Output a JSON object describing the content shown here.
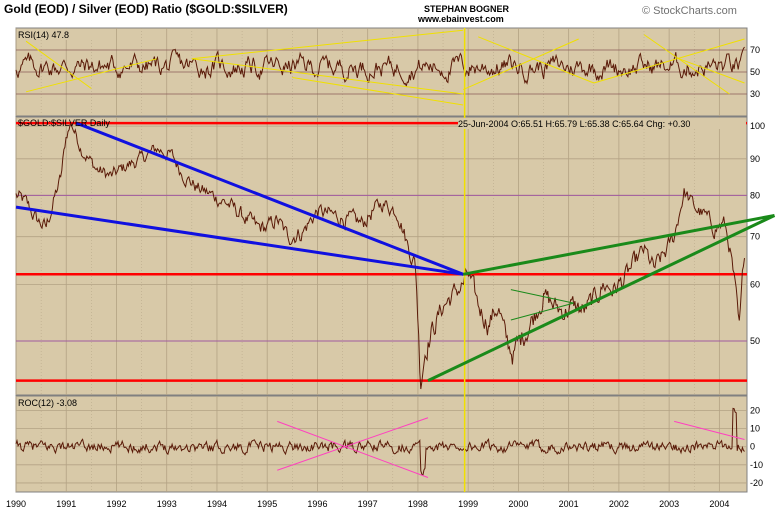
{
  "header": {
    "title": "Gold (EOD) / Silver (EOD) Ratio ($GOLD:$SILVER)",
    "author": "STEPHAN BOGNER",
    "website": "www.ebainvest.com",
    "copyright": "© StockCharts.com"
  },
  "colors": {
    "panel_bg": "#d8c9a8",
    "price_line": "#5a1a08",
    "grid": "#b3a284",
    "purple_grid": "#a05aa0",
    "red_level": "#ff0000",
    "blue_trend": "#1010e0",
    "green_trend": "#1a8a1a",
    "yellow_trend": "#f0e000",
    "pink_trend": "#ff40c0",
    "border": "#808080"
  },
  "chart_data": [
    {
      "type": "line",
      "label": "RSI(14) 47.8",
      "last_value": 47.8,
      "y_ticks": [
        30,
        50,
        70
      ],
      "ylim": [
        10,
        90
      ],
      "lines": "yellow trendlines",
      "approx_profile": {
        "mean": 55,
        "range": [
          28,
          82
        ]
      }
    },
    {
      "type": "line",
      "label": "$GOLD:$SILVER Daily",
      "quote": "25-Jun-2004  O:65.51  H:65.79  L:65.38  C:65.64  Chg: +0.30",
      "y_ticks": [
        50,
        60,
        70,
        80,
        90,
        100
      ],
      "ylim": [
        42,
        103
      ],
      "scale": "log",
      "red_levels": [
        101,
        62,
        44
      ],
      "purple_levels": [
        50,
        80
      ],
      "series": [
        {
          "x": [
            1990.0,
            1990.2,
            1990.4,
            1990.6,
            1990.9,
            1991.0,
            1991.1,
            1991.3,
            1991.6,
            1991.9,
            1992.2,
            1992.5,
            1992.8,
            1993.1,
            1993.3,
            1993.6,
            1993.9,
            1994.2,
            1994.5,
            1994.8,
            1995.0,
            1995.2,
            1995.4,
            1995.7,
            1996.0,
            1996.3,
            1996.6,
            1996.9,
            1997.1,
            1997.3,
            1997.6,
            1997.8,
            1997.95,
            1998.05,
            1998.15,
            1998.3,
            1998.5,
            1998.7,
            1998.9,
            1999.0,
            1999.2,
            1999.4,
            1999.6,
            1999.75,
            1999.9,
            2000.1,
            2000.3,
            2000.5,
            2000.7,
            2000.9,
            2001.1,
            2001.3,
            2001.5,
            2001.7,
            2001.9,
            2002.1,
            2002.3,
            2002.5,
            2002.7,
            2002.9,
            2003.1,
            2003.3,
            2003.5,
            2003.7,
            2003.9,
            2004.1,
            2004.2,
            2004.3,
            2004.4,
            2004.5
          ],
          "y": [
            80,
            78,
            74,
            72,
            85,
            97,
            101,
            93,
            87,
            85,
            88,
            90,
            93,
            91,
            86,
            82,
            80,
            78,
            75,
            72,
            72,
            74,
            70,
            71,
            76,
            75,
            74,
            73,
            76,
            78,
            76,
            68,
            64,
            44,
            49,
            52,
            56,
            58,
            60,
            62,
            56,
            53,
            56,
            50,
            48,
            51,
            54,
            58,
            56,
            55,
            56,
            55,
            57,
            60,
            59,
            61,
            64,
            67,
            63,
            66,
            70,
            81,
            77,
            75,
            72,
            73,
            68,
            60,
            51,
            67
          ]
        }
      ],
      "trendlines": [
        {
          "color": "blue",
          "from": [
            1991.2,
            101
          ],
          "to": [
            1998.9,
            62
          ]
        },
        {
          "color": "blue",
          "from": [
            1990.0,
            77
          ],
          "to": [
            1998.9,
            62
          ]
        },
        {
          "color": "green",
          "from": [
            1998.9,
            62
          ],
          "to": [
            2004.5,
            74
          ]
        },
        {
          "color": "green",
          "from": [
            1998.2,
            44
          ],
          "to": [
            2004.5,
            74
          ]
        }
      ]
    },
    {
      "type": "line",
      "label": "ROC(12) -3.08",
      "last_value": -3.08,
      "y_ticks": [
        -20,
        -10,
        0,
        10,
        20
      ],
      "ylim": [
        -25,
        28
      ],
      "lines": "pink trendlines"
    }
  ],
  "x_axis": {
    "labels": [
      "1990",
      "1991",
      "1992",
      "1993",
      "1994",
      "1995",
      "1996",
      "1997",
      "1998",
      "1999",
      "2000",
      "2001",
      "2002",
      "2003",
      "2004"
    ]
  }
}
